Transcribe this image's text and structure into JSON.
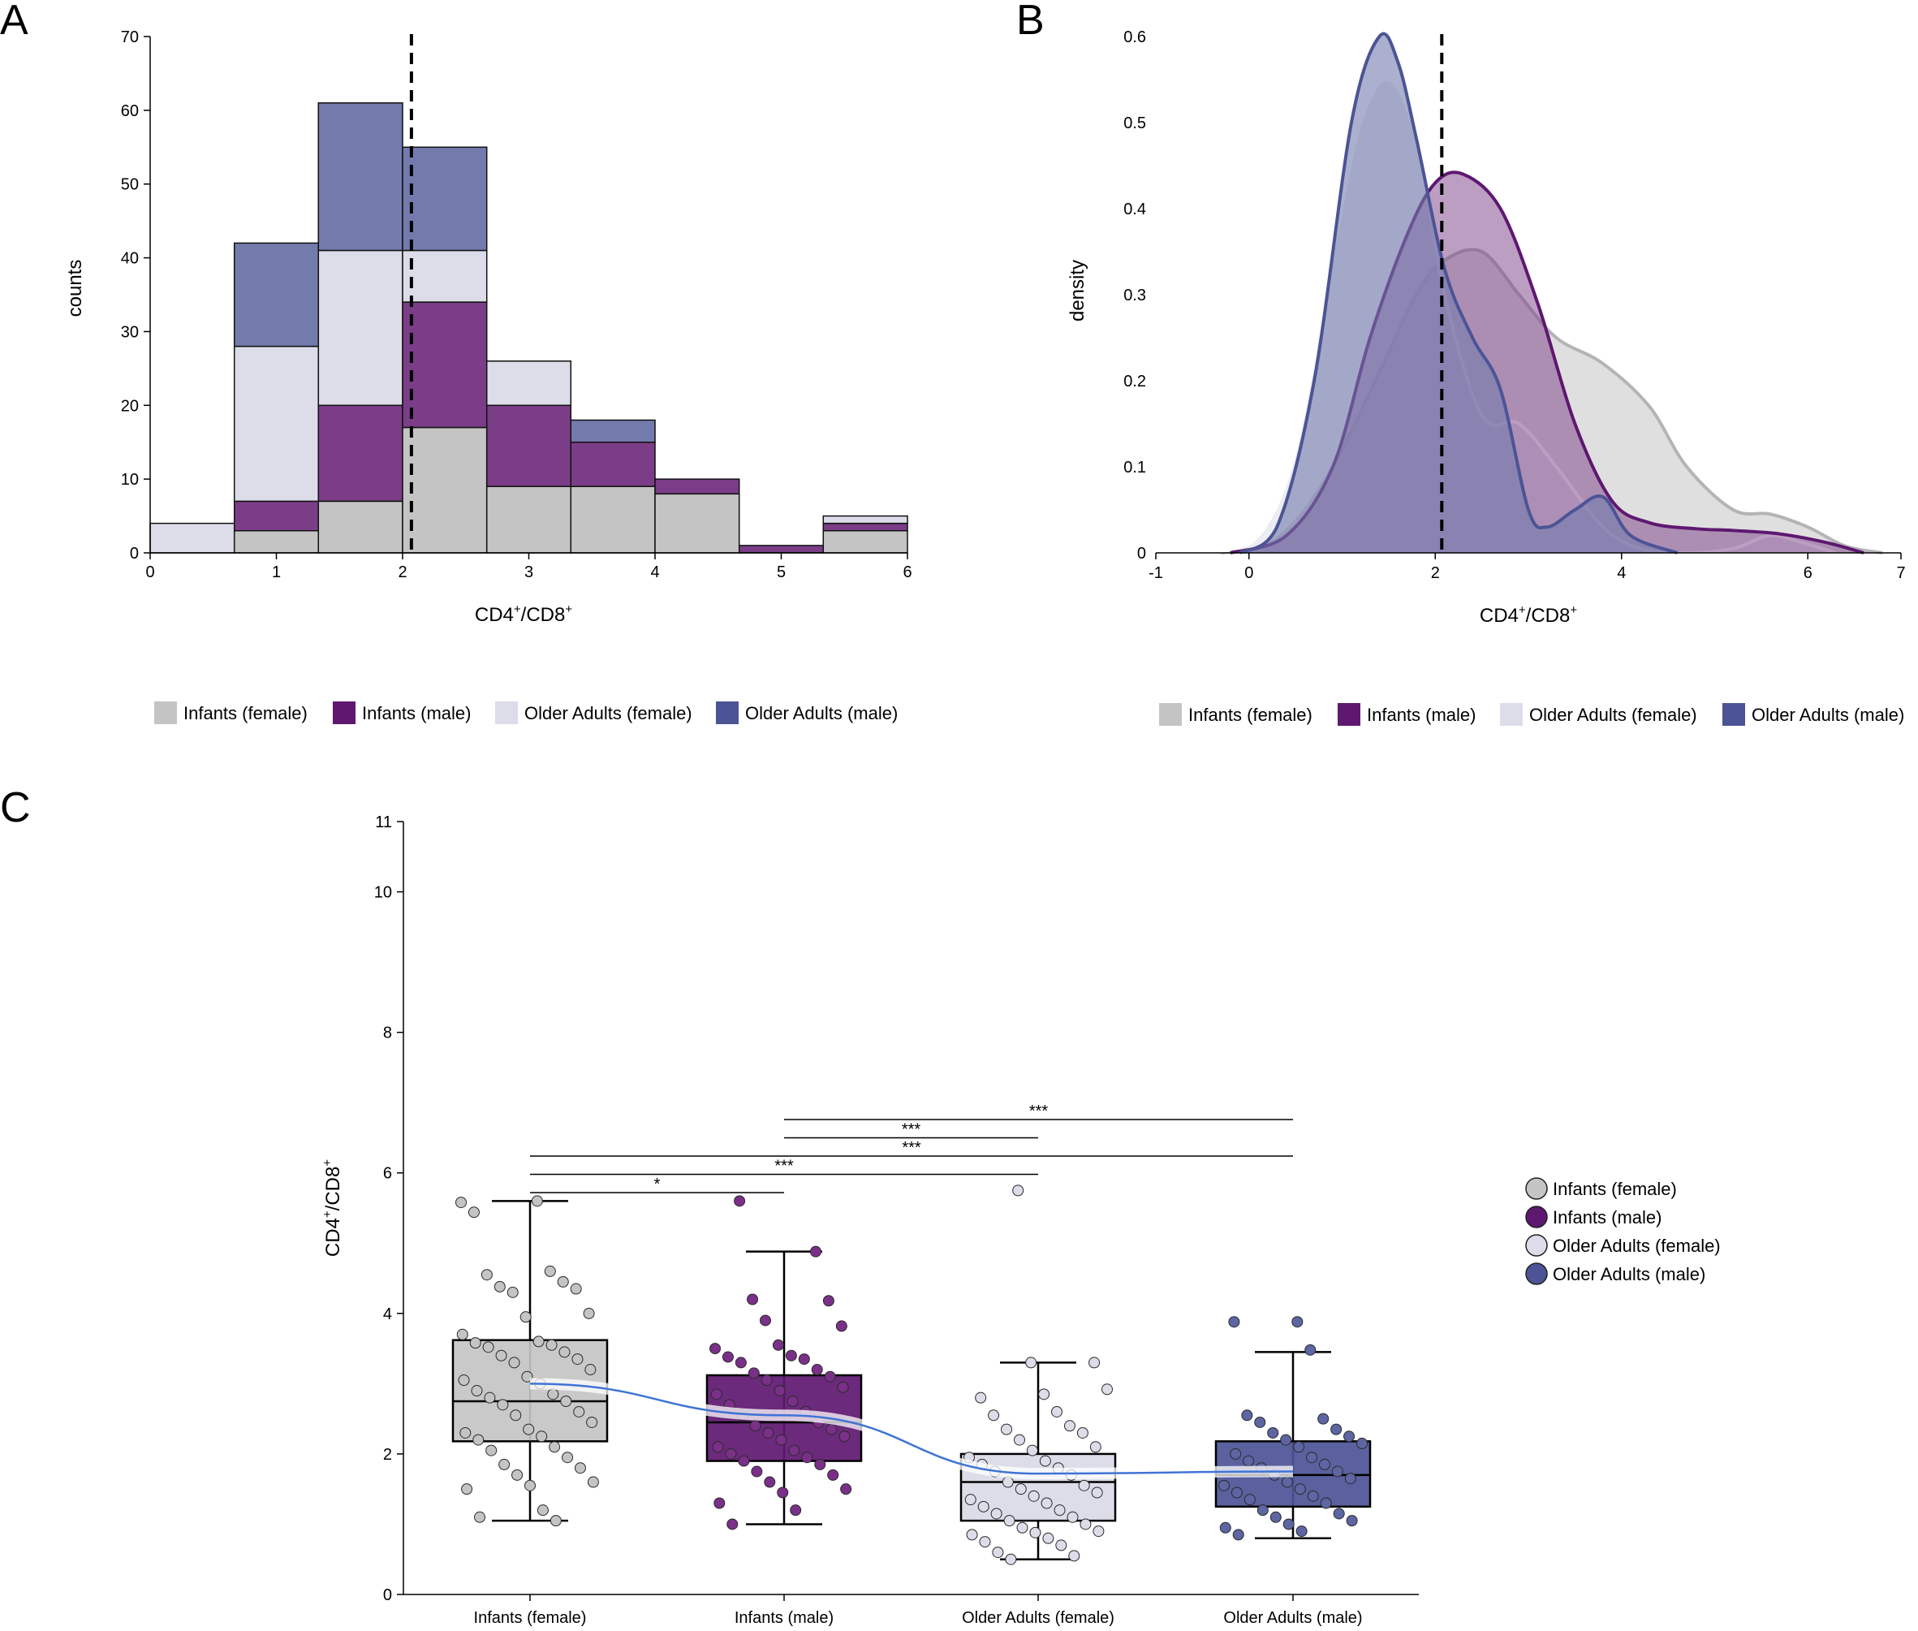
{
  "colors": {
    "infants_female": "#c4c4c4",
    "infants_male": "#7b3d87",
    "infants_male_dark": "#5e1870",
    "older_female": "#dcdde9",
    "older_male": "#737bad",
    "older_male_dark": "#4c5496",
    "trend_line": "#3f74d6"
  },
  "chart_data": [
    {
      "panel": "A",
      "type": "bar",
      "stacked": true,
      "xlabel_main": "CD4",
      "xlabel_sup1": "+",
      "xlabel_mid": "/CD8",
      "xlabel_sup2": "+",
      "ylabel": "counts",
      "xlim": [
        0,
        6
      ],
      "ylim": [
        0,
        70
      ],
      "x_ticks": [
        "0",
        "1",
        "2",
        "3",
        "4",
        "5",
        "6"
      ],
      "y_ticks": [
        "0",
        "10",
        "20",
        "30",
        "40",
        "50",
        "60",
        "70"
      ],
      "bin_edges": [
        0,
        0.667,
        1.333,
        2,
        2.667,
        3.333,
        4,
        4.667,
        5.333,
        6
      ],
      "reference_line_x": 2.07,
      "series": [
        {
          "name": "Infants (female)",
          "values": [
            0,
            3,
            7,
            17,
            9,
            9,
            8,
            0,
            3
          ]
        },
        {
          "name": "Infants (male)",
          "values": [
            0,
            4,
            13,
            17,
            11,
            6,
            2,
            1,
            1
          ]
        },
        {
          "name": "Older Adults (female)",
          "values": [
            4,
            21,
            21,
            7,
            6,
            0,
            0,
            0,
            1
          ]
        },
        {
          "name": "Older Adults (male)",
          "values": [
            0,
            14,
            20,
            14,
            0,
            3,
            0,
            0,
            0
          ]
        }
      ],
      "legend": [
        "Infants (female)",
        "Infants (male)",
        "Older Adults (female)",
        "Older Adults (male)"
      ]
    },
    {
      "panel": "B",
      "type": "area",
      "xlabel_main": "CD4",
      "xlabel_sup1": "+",
      "xlabel_mid": "/CD8",
      "xlabel_sup2": "+",
      "ylabel": "density",
      "xlim": [
        -1,
        7
      ],
      "ylim": [
        0,
        0.6
      ],
      "x_ticks": [
        "-1",
        "0",
        "2",
        "4",
        "6",
        "7"
      ],
      "x_tick_values": [
        -1,
        0,
        2,
        4,
        6,
        7
      ],
      "y_ticks": [
        "0",
        "0.1",
        "0.2",
        "0.3",
        "0.4",
        "0.5",
        "0.6"
      ],
      "reference_line_x": 2.07,
      "series": [
        {
          "name": "Infants (female)",
          "x": [
            -0.3,
            0.2,
            0.6,
            1.0,
            1.4,
            1.8,
            2.1,
            2.5,
            2.9,
            3.3,
            3.8,
            4.3,
            4.7,
            5.2,
            5.6,
            6.0,
            6.4,
            6.8
          ],
          "y": [
            0,
            0.01,
            0.05,
            0.12,
            0.21,
            0.3,
            0.34,
            0.35,
            0.3,
            0.25,
            0.22,
            0.17,
            0.1,
            0.05,
            0.045,
            0.03,
            0.008,
            0
          ]
        },
        {
          "name": "Infants (male)",
          "x": [
            -0.2,
            0.4,
            0.9,
            1.3,
            1.7,
            2.0,
            2.3,
            2.7,
            3.1,
            3.5,
            3.9,
            4.3,
            4.8,
            5.2,
            5.7,
            6.2,
            6.6
          ],
          "y": [
            0,
            0.02,
            0.1,
            0.25,
            0.37,
            0.43,
            0.44,
            0.4,
            0.29,
            0.15,
            0.06,
            0.035,
            0.028,
            0.026,
            0.022,
            0.012,
            0
          ]
        },
        {
          "name": "Older Adults (female)",
          "x": [
            -0.4,
            0.1,
            0.5,
            0.9,
            1.2,
            1.5,
            1.8,
            2.1,
            2.5,
            2.9,
            3.3,
            3.8,
            4.2,
            4.7,
            5.2,
            5.6,
            6.0,
            6.3
          ],
          "y": [
            0,
            0.02,
            0.12,
            0.35,
            0.5,
            0.55,
            0.48,
            0.3,
            0.16,
            0.15,
            0.1,
            0.03,
            0.005,
            0,
            0.005,
            0.02,
            0.01,
            0
          ]
        },
        {
          "name": "Older Adults (male)",
          "x": [
            -0.1,
            0.3,
            0.7,
            1.1,
            1.4,
            1.6,
            1.8,
            2.1,
            2.4,
            2.7,
            3.0,
            3.2,
            3.5,
            3.8,
            4.1,
            4.6
          ],
          "y": [
            0,
            0.03,
            0.2,
            0.5,
            0.6,
            0.57,
            0.48,
            0.33,
            0.25,
            0.19,
            0.05,
            0.03,
            0.05,
            0.065,
            0.02,
            0
          ]
        }
      ],
      "legend": [
        "Infants (female)",
        "Infants (male)",
        "Older Adults (female)",
        "Older Adults (male)"
      ]
    },
    {
      "panel": "C",
      "type": "box",
      "ylabel_main": "CD4",
      "ylabel_sup1": "+",
      "ylabel_mid": "/CD8",
      "ylabel_sup2": "+",
      "ylim": [
        0,
        11
      ],
      "y_ticks": [
        "0",
        "2",
        "4",
        "6",
        "8",
        "10",
        "11"
      ],
      "y_tick_values": [
        0,
        2,
        4,
        6,
        8,
        10,
        11
      ],
      "categories": [
        "Infants (female)",
        "Infants (male)",
        "Older Adults (female)",
        "Older Adults (male)"
      ],
      "boxes": [
        {
          "name": "Infants (female)",
          "min": 1.05,
          "q1": 2.18,
          "median": 2.75,
          "q3": 3.62,
          "max": 5.6
        },
        {
          "name": "Infants (male)",
          "min": 1.0,
          "q1": 1.9,
          "median": 2.45,
          "q3": 3.12,
          "max": 4.88
        },
        {
          "name": "Older Adults (female)",
          "min": 0.5,
          "q1": 1.05,
          "median": 1.6,
          "q3": 2.0,
          "max": 3.3
        },
        {
          "name": "Older Adults (male)",
          "min": 0.8,
          "q1": 1.25,
          "median": 1.7,
          "q3": 2.18,
          "max": 3.45
        }
      ],
      "points": [
        [
          5.58,
          5.6,
          5.44,
          4.6,
          4.55,
          4.45,
          4.38,
          4.35,
          4.3,
          4.0,
          3.95,
          3.7,
          3.6,
          3.58,
          3.55,
          3.52,
          3.45,
          3.4,
          3.35,
          3.3,
          3.2,
          3.1,
          3.05,
          3.0,
          2.9,
          2.85,
          2.8,
          2.75,
          2.7,
          2.6,
          2.55,
          2.45,
          2.35,
          2.3,
          2.25,
          2.2,
          2.1,
          2.05,
          1.95,
          1.85,
          1.8,
          1.7,
          1.6,
          1.55,
          1.5,
          1.2,
          1.1,
          1.05
        ],
        [
          5.6,
          4.88,
          4.2,
          4.18,
          3.9,
          3.82,
          3.55,
          3.5,
          3.4,
          3.38,
          3.35,
          3.3,
          3.2,
          3.15,
          3.1,
          3.05,
          2.95,
          2.9,
          2.85,
          2.75,
          2.7,
          2.6,
          2.55,
          2.45,
          2.4,
          2.35,
          2.3,
          2.25,
          2.2,
          2.1,
          2.05,
          2.0,
          1.95,
          1.9,
          1.85,
          1.75,
          1.7,
          1.6,
          1.5,
          1.45,
          1.3,
          1.2,
          1.0
        ],
        [
          5.75,
          3.3,
          3.3,
          2.92,
          2.85,
          2.8,
          2.6,
          2.55,
          2.4,
          2.35,
          2.3,
          2.2,
          2.1,
          2.05,
          1.95,
          1.9,
          1.85,
          1.8,
          1.75,
          1.7,
          1.6,
          1.55,
          1.5,
          1.45,
          1.4,
          1.35,
          1.3,
          1.25,
          1.2,
          1.15,
          1.1,
          1.05,
          1.0,
          0.95,
          0.9,
          0.88,
          0.85,
          0.8,
          0.75,
          0.7,
          0.6,
          0.55,
          0.5
        ],
        [
          3.88,
          3.88,
          3.48,
          2.55,
          2.5,
          2.45,
          2.35,
          2.3,
          2.25,
          2.2,
          2.15,
          2.1,
          2.0,
          1.95,
          1.9,
          1.85,
          1.8,
          1.75,
          1.7,
          1.65,
          1.6,
          1.55,
          1.5,
          1.45,
          1.4,
          1.35,
          1.3,
          1.2,
          1.15,
          1.1,
          1.05,
          1.0,
          0.95,
          0.9,
          0.85
        ]
      ],
      "trend": [
        3.0,
        2.55,
        1.72,
        1.75
      ],
      "significance": [
        {
          "from": 0,
          "to": 1,
          "y": 5.72,
          "label": "*"
        },
        {
          "from": 0,
          "to": 2,
          "y": 5.98,
          "label": "***"
        },
        {
          "from": 0,
          "to": 3,
          "y": 6.24,
          "label": "***"
        },
        {
          "from": 1,
          "to": 2,
          "y": 6.5,
          "label": "***"
        },
        {
          "from": 1,
          "to": 3,
          "y": 6.76,
          "label": "***"
        }
      ],
      "legend": [
        "Infants (female)",
        "Infants (male)",
        "Older Adults (female)",
        "Older Adults (male)"
      ]
    }
  ],
  "panel_labels": {
    "a": "A",
    "b": "B",
    "c": "C"
  }
}
